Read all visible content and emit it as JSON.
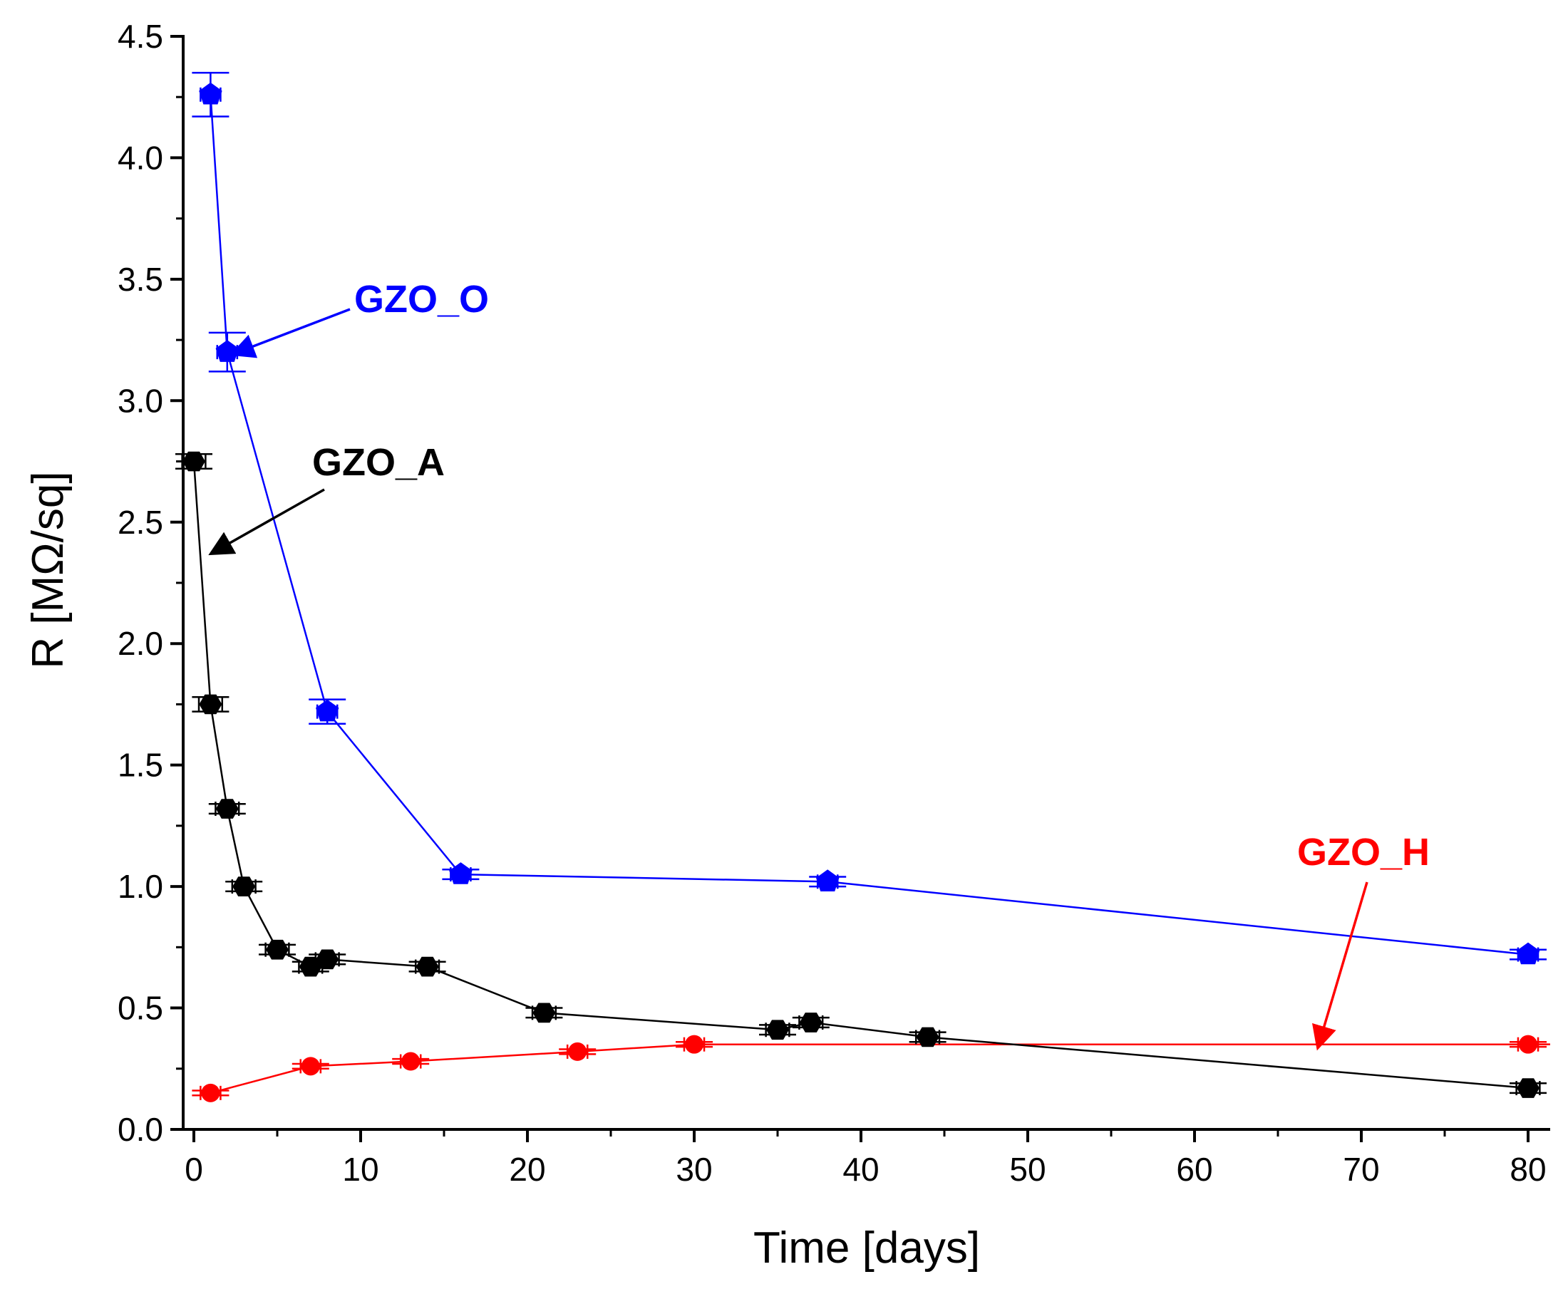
{
  "chart_data": {
    "type": "line",
    "title": "",
    "xlabel": "Time [days]",
    "ylabel": "R [MΩ/sq]",
    "xlim": [
      -1,
      81
    ],
    "ylim": [
      0,
      4.5
    ],
    "xticks": [
      0,
      10,
      20,
      30,
      40,
      50,
      60,
      70,
      80
    ],
    "xtick_labels": [
      "0",
      "10",
      "20",
      "30",
      "40",
      "50",
      "60",
      "70",
      "80"
    ],
    "yticks": [
      0,
      0.5,
      1.0,
      1.5,
      2.0,
      2.5,
      3.0,
      3.5,
      4.0,
      4.5
    ],
    "ytick_labels": [
      "0.0",
      "0.5",
      "1.0",
      "1.5",
      "2.0",
      "2.5",
      "3.0",
      "3.5",
      "4.0",
      "4.5"
    ],
    "grid": false,
    "legend": "none",
    "series": [
      {
        "name": "GZO_O",
        "label": "GZO_O",
        "color": "#0000ff",
        "marker": "pentagon",
        "x": [
          1,
          2,
          8,
          16,
          38,
          80
        ],
        "y": [
          4.26,
          3.2,
          1.72,
          1.05,
          1.02,
          0.72
        ],
        "yerr": [
          0.09,
          0.08,
          0.05,
          0.02,
          0.02,
          0.02
        ],
        "xerr": [
          0.6,
          0.6,
          0.6,
          0.6,
          0.6,
          0.6
        ]
      },
      {
        "name": "GZO_A",
        "label": "GZO_A",
        "color": "#000000",
        "marker": "hexagon",
        "x": [
          0,
          1,
          2,
          3,
          5,
          7,
          8,
          14,
          21,
          35,
          37,
          44,
          80
        ],
        "y": [
          2.75,
          1.75,
          1.32,
          1.0,
          0.74,
          0.67,
          0.7,
          0.67,
          0.48,
          0.41,
          0.44,
          0.38,
          0.17
        ],
        "yerr": [
          0.03,
          0.03,
          0.02,
          0.02,
          0.02,
          0.02,
          0.02,
          0.02,
          0.02,
          0.02,
          0.02,
          0.02,
          0.02
        ],
        "xerr": [
          0.7,
          0.7,
          0.7,
          0.7,
          0.7,
          0.7,
          0.7,
          0.7,
          0.7,
          0.7,
          0.7,
          0.7,
          0.7
        ]
      },
      {
        "name": "GZO_H",
        "label": "GZO_H",
        "color": "#ff0000",
        "marker": "circle",
        "x": [
          1,
          7,
          13,
          23,
          30,
          80
        ],
        "y": [
          0.15,
          0.26,
          0.28,
          0.32,
          0.35,
          0.35
        ],
        "yerr": [
          0.01,
          0.01,
          0.01,
          0.01,
          0.01,
          0.01
        ],
        "xerr": [
          0.6,
          0.6,
          0.6,
          0.6,
          0.6,
          0.6
        ]
      }
    ],
    "annotations": [
      {
        "series": "GZO_O",
        "text": "GZO_O",
        "points_to": [
          2,
          3.2
        ]
      },
      {
        "series": "GZO_A",
        "text": "GZO_A",
        "points_to": [
          0.7,
          2.38
        ]
      },
      {
        "series": "GZO_H",
        "text": "GZO_H",
        "points_to": [
          67,
          0.35
        ]
      }
    ]
  }
}
